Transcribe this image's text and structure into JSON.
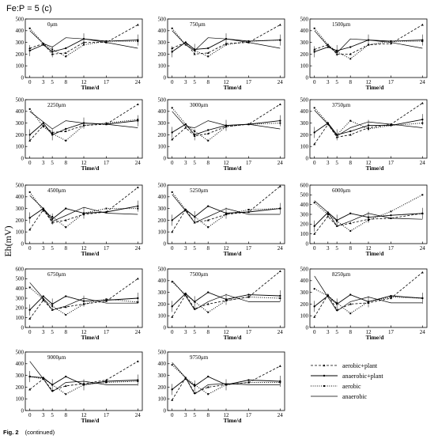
{
  "figure": {
    "heading": "Fe:P = 5 (c)",
    "ylabel": "Eh(mV)",
    "caption_bold": "Fig. 2",
    "caption_rest": "(continued)",
    "xlabel": "Time/d",
    "x_ticks": [
      0,
      3,
      5,
      8,
      12,
      17,
      24
    ]
  },
  "legend": {
    "entries": [
      {
        "label": "aerobic+plant",
        "style": "marker-dash"
      },
      {
        "label": "anaerobic+plant",
        "style": "solid-marker"
      },
      {
        "label": "aerobic",
        "style": "dotted"
      },
      {
        "label": "anaerobic",
        "style": "solid"
      }
    ]
  },
  "chart_data": [
    {
      "type": "line",
      "panel_label": "0μm",
      "x": [
        0,
        3,
        5,
        8,
        12,
        17,
        24
      ],
      "ylim": [
        0,
        500
      ],
      "yticks": [
        0,
        100,
        200,
        300,
        400,
        500
      ],
      "series": [
        {
          "values": [
            250,
            290,
            200,
            210,
            300,
            300,
            450
          ]
        },
        {
          "values": [
            230,
            280,
            220,
            250,
            330,
            310,
            320
          ]
        },
        {
          "values": [
            420,
            290,
            240,
            180,
            280,
            310,
            310
          ]
        },
        {
          "values": [
            400,
            290,
            260,
            340,
            330,
            300,
            250
          ]
        }
      ]
    },
    {
      "type": "line",
      "panel_label": "750μm",
      "x": [
        0,
        3,
        5,
        8,
        12,
        17,
        24
      ],
      "ylim": [
        0,
        500
      ],
      "yticks": [
        0,
        100,
        200,
        300,
        400,
        500
      ],
      "series": [
        {
          "values": [
            250,
            300,
            200,
            210,
            290,
            300,
            450
          ]
        },
        {
          "values": [
            220,
            300,
            240,
            250,
            330,
            310,
            320
          ]
        },
        {
          "values": [
            420,
            280,
            230,
            180,
            280,
            310,
            320
          ]
        },
        {
          "values": [
            400,
            280,
            230,
            340,
            330,
            300,
            250
          ]
        }
      ]
    },
    {
      "type": "line",
      "panel_label": "1500μm",
      "x": [
        0,
        3,
        5,
        8,
        12,
        17,
        24
      ],
      "ylim": [
        0,
        500
      ],
      "yticks": [
        0,
        100,
        200,
        300,
        400,
        500
      ],
      "series": [
        {
          "values": [
            240,
            280,
            200,
            200,
            280,
            290,
            450
          ]
        },
        {
          "values": [
            220,
            260,
            230,
            260,
            320,
            310,
            320
          ]
        },
        {
          "values": [
            420,
            280,
            220,
            160,
            280,
            310,
            310
          ]
        },
        {
          "values": [
            400,
            270,
            210,
            330,
            320,
            300,
            250
          ]
        }
      ]
    },
    {
      "type": "line",
      "panel_label": "2250μm",
      "x": [
        0,
        3,
        5,
        8,
        12,
        17,
        24
      ],
      "ylim": [
        0,
        500
      ],
      "yticks": [
        0,
        100,
        200,
        300,
        400,
        500
      ],
      "series": [
        {
          "values": [
            150,
            280,
            220,
            230,
            280,
            290,
            460
          ]
        },
        {
          "values": [
            200,
            300,
            200,
            250,
            300,
            290,
            320
          ]
        },
        {
          "values": [
            420,
            270,
            210,
            150,
            280,
            300,
            330
          ]
        },
        {
          "values": [
            400,
            310,
            250,
            320,
            300,
            290,
            260
          ]
        }
      ]
    },
    {
      "type": "line",
      "panel_label": "3000μm",
      "x": [
        0,
        3,
        5,
        8,
        12,
        17,
        24
      ],
      "ylim": [
        0,
        500
      ],
      "yticks": [
        0,
        100,
        200,
        300,
        400,
        500
      ],
      "series": [
        {
          "values": [
            160,
            260,
            190,
            210,
            270,
            290,
            460
          ]
        },
        {
          "values": [
            220,
            290,
            200,
            240,
            280,
            290,
            320
          ]
        },
        {
          "values": [
            430,
            290,
            230,
            150,
            270,
            290,
            300
          ]
        },
        {
          "values": [
            400,
            270,
            260,
            320,
            280,
            290,
            250
          ]
        }
      ]
    },
    {
      "type": "line",
      "panel_label": "3750μm",
      "x": [
        0,
        3,
        5,
        8,
        12,
        17,
        24
      ],
      "ylim": [
        0,
        500
      ],
      "yticks": [
        0,
        100,
        200,
        300,
        400,
        500
      ],
      "series": [
        {
          "values": [
            120,
            290,
            180,
            200,
            260,
            290,
            470
          ]
        },
        {
          "values": [
            220,
            300,
            200,
            230,
            280,
            280,
            330
          ]
        },
        {
          "values": [
            430,
            300,
            200,
            320,
            250,
            280,
            300
          ]
        },
        {
          "values": [
            410,
            290,
            190,
            260,
            310,
            290,
            260
          ]
        }
      ]
    },
    {
      "type": "line",
      "panel_label": "4500μm",
      "x": [
        0,
        3,
        5,
        8,
        12,
        17,
        24
      ],
      "ylim": [
        0,
        500
      ],
      "yticks": [
        0,
        100,
        200,
        300,
        400,
        500
      ],
      "series": [
        {
          "values": [
            120,
            290,
            180,
            200,
            250,
            270,
            480
          ]
        },
        {
          "values": [
            220,
            300,
            210,
            300,
            260,
            270,
            320
          ]
        },
        {
          "values": [
            440,
            280,
            230,
            140,
            260,
            300,
            300
          ]
        },
        {
          "values": [
            410,
            300,
            190,
            240,
            310,
            260,
            250
          ]
        }
      ]
    },
    {
      "type": "line",
      "panel_label": "5250μm",
      "x": [
        0,
        3,
        5,
        8,
        12,
        17,
        24
      ],
      "ylim": [
        0,
        500
      ],
      "yticks": [
        0,
        100,
        200,
        300,
        400,
        500
      ],
      "series": [
        {
          "values": [
            100,
            290,
            180,
            200,
            250,
            270,
            490
          ]
        },
        {
          "values": [
            200,
            290,
            230,
            320,
            260,
            270,
            300
          ]
        },
        {
          "values": [
            440,
            290,
            230,
            140,
            250,
            290,
            300
          ]
        },
        {
          "values": [
            420,
            280,
            180,
            230,
            300,
            250,
            250
          ]
        }
      ]
    },
    {
      "type": "line",
      "panel_label": "6000μm",
      "x": [
        0,
        3,
        5,
        8,
        12,
        17,
        24
      ],
      "ylim": [
        0,
        600
      ],
      "yticks": [
        0,
        100,
        200,
        300,
        400,
        500,
        600
      ],
      "series": [
        {
          "values": [
            100,
            280,
            180,
            210,
            250,
            260,
            310
          ]
        },
        {
          "values": [
            180,
            320,
            240,
            310,
            270,
            290,
            310
          ]
        },
        {
          "values": [
            420,
            300,
            230,
            130,
            240,
            330,
            500
          ]
        },
        {
          "values": [
            440,
            320,
            180,
            230,
            310,
            260,
            250
          ]
        }
      ]
    },
    {
      "type": "line",
      "panel_label": "6750μm",
      "x": [
        0,
        3,
        5,
        8,
        12,
        17,
        24
      ],
      "ylim": [
        0,
        600
      ],
      "yticks": [
        0,
        100,
        200,
        300,
        400,
        500,
        600
      ],
      "series": [
        {
          "values": [
            90,
            280,
            180,
            210,
            240,
            270,
            500
          ]
        },
        {
          "values": [
            180,
            320,
            240,
            320,
            270,
            280,
            300
          ]
        },
        {
          "values": [
            410,
            290,
            220,
            130,
            240,
            290,
            260
          ]
        },
        {
          "values": [
            460,
            300,
            180,
            220,
            300,
            250,
            250
          ]
        }
      ]
    },
    {
      "type": "line",
      "panel_label": "7500μm",
      "x": [
        0,
        3,
        5,
        8,
        12,
        17,
        24
      ],
      "ylim": [
        0,
        500
      ],
      "yticks": [
        0,
        100,
        200,
        300,
        400,
        500
      ],
      "series": [
        {
          "values": [
            90,
            280,
            160,
            200,
            230,
            260,
            480
          ]
        },
        {
          "values": [
            180,
            290,
            220,
            300,
            240,
            280,
            270
          ]
        },
        {
          "values": [
            390,
            280,
            220,
            130,
            230,
            260,
            250
          ]
        },
        {
          "values": [
            400,
            270,
            150,
            220,
            280,
            220,
            220
          ]
        }
      ]
    },
    {
      "type": "line",
      "panel_label": "8250μm",
      "x": [
        0,
        3,
        5,
        8,
        12,
        17,
        24
      ],
      "ylim": [
        0,
        500
      ],
      "yticks": [
        0,
        100,
        200,
        300,
        400,
        500
      ],
      "series": [
        {
          "values": [
            90,
            280,
            150,
            200,
            210,
            250,
            470
          ]
        },
        {
          "values": [
            180,
            270,
            200,
            280,
            220,
            270,
            250
          ]
        },
        {
          "values": [
            330,
            270,
            210,
            120,
            220,
            260,
            250
          ]
        },
        {
          "values": [
            440,
            260,
            140,
            220,
            260,
            210,
            210
          ]
        }
      ]
    },
    {
      "type": "line",
      "panel_label": "9000μm",
      "x": [
        0,
        3,
        5,
        8,
        12,
        17,
        24
      ],
      "ylim": [
        0,
        500
      ],
      "yticks": [
        0,
        100,
        200,
        300,
        400,
        500
      ],
      "series": [
        {
          "values": [
            180,
            270,
            170,
            210,
            230,
            260,
            420
          ]
        },
        {
          "values": [
            290,
            280,
            220,
            290,
            220,
            250,
            260
          ]
        },
        {
          "values": [
            290,
            270,
            220,
            140,
            220,
            240,
            250
          ]
        },
        {
          "values": [
            420,
            270,
            160,
            240,
            250,
            220,
            220
          ]
        }
      ]
    },
    {
      "type": "line",
      "panel_label": "9750μm",
      "x": [
        0,
        3,
        5,
        8,
        12,
        17,
        24
      ],
      "ylim": [
        0,
        500
      ],
      "yticks": [
        0,
        100,
        200,
        300,
        400,
        500
      ],
      "series": [
        {
          "values": [
            90,
            280,
            150,
            200,
            220,
            240,
            380
          ]
        },
        {
          "values": [
            180,
            270,
            210,
            290,
            220,
            260,
            250
          ]
        },
        {
          "values": [
            390,
            280,
            220,
            140,
            220,
            240,
            240
          ]
        },
        {
          "values": [
            410,
            280,
            140,
            220,
            230,
            220,
            220
          ]
        }
      ]
    }
  ]
}
